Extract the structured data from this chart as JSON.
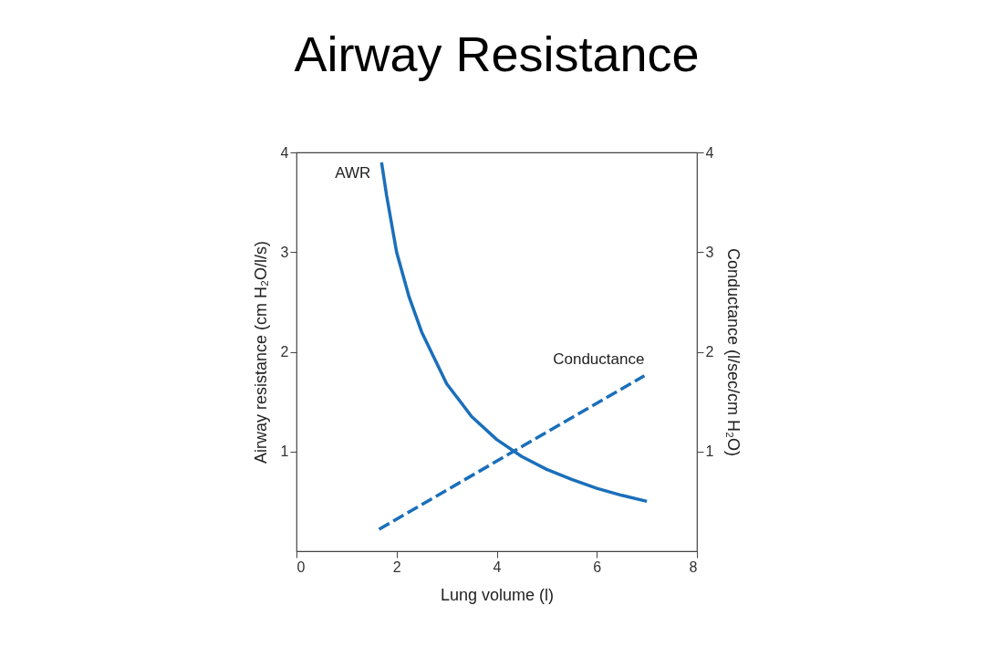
{
  "chart_data": {
    "type": "line",
    "title": "Airway Resistance",
    "xlabel": "Lung volume (l)",
    "ylabel": "Airway resistance (cm H₂O/l/s)",
    "y2label": "Conductance (l/sec/cm H₂O)",
    "xlim": [
      0,
      8
    ],
    "xticks": [
      0,
      2,
      4,
      6,
      8
    ],
    "ylim": [
      0,
      4
    ],
    "yticks": [
      1,
      2,
      3,
      4
    ],
    "y2lim": [
      0,
      4
    ],
    "y2ticks": [
      1,
      2,
      3,
      4
    ],
    "marker": "none",
    "series": [
      {
        "name": "AWR",
        "color": "#1a6fba",
        "line_style": "solid",
        "x": [
          1.7,
          1.8,
          2.0,
          2.25,
          2.5,
          3.0,
          3.5,
          4.0,
          4.5,
          5.0,
          5.5,
          6.0,
          6.5,
          7.0
        ],
        "values": [
          3.9,
          3.57,
          3.0,
          2.55,
          2.2,
          1.68,
          1.35,
          1.12,
          0.95,
          0.82,
          0.72,
          0.63,
          0.56,
          0.5
        ]
      },
      {
        "name": "Conductance",
        "color": "#1a6fba",
        "line_style": "dashed",
        "axis": "y2",
        "x": [
          1.65,
          6.95
        ],
        "values": [
          0.22,
          1.76
        ]
      }
    ]
  }
}
